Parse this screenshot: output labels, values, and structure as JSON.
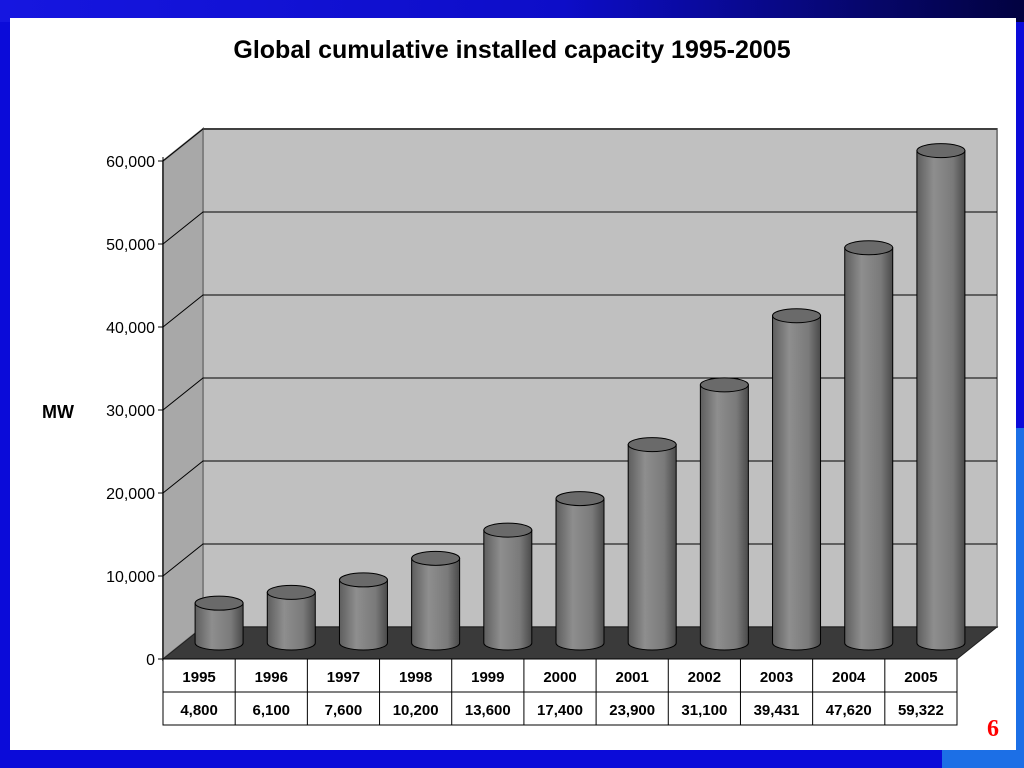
{
  "slide": {
    "page_number": "6"
  },
  "colors": {
    "background": "#0b0bd9",
    "wall": "#c0c0c0",
    "floor": "#3a3a3a",
    "bar": "#7c7c7c",
    "page_number": "#ff0000"
  },
  "chart_data": {
    "type": "bar",
    "style": "3d-cylinder",
    "title": "Global cumulative installed capacity 1995-2005",
    "xlabel": "",
    "ylabel": "MW",
    "ylim": [
      0,
      60000
    ],
    "yticks": [
      "0",
      "10,000",
      "20,000",
      "30,000",
      "40,000",
      "50,000",
      "60,000"
    ],
    "grid": true,
    "legend": "none",
    "categories": [
      "1995",
      "1996",
      "1997",
      "1998",
      "1999",
      "2000",
      "2001",
      "2002",
      "2003",
      "2004",
      "2005"
    ],
    "values": [
      4800,
      6100,
      7600,
      10200,
      13600,
      17400,
      23900,
      31100,
      39431,
      47620,
      59322
    ],
    "value_labels": [
      "4,800",
      "6,100",
      "7,600",
      "10,200",
      "13,600",
      "17,400",
      "23,900",
      "31,100",
      "39,431",
      "47,620",
      "59,322"
    ]
  }
}
